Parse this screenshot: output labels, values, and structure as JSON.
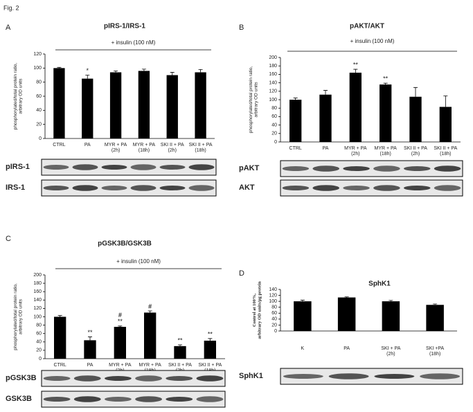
{
  "figure_label": "Fig. 2",
  "chart_data": [
    {
      "type": "bar",
      "panel": "A",
      "title": "pIRS-1/IRS-1",
      "annotation": "+ insulin (100 nM)",
      "y_label": "phosphorylated/total protein ratio, arbitrary OD units",
      "categories": [
        "CTRL",
        "PA",
        "MYR + PA (2h)",
        "MYR + PA (18h)",
        "SKI II + PA (2h)",
        "SKI II + PA (18h)"
      ],
      "values": [
        100,
        85,
        94,
        96,
        90,
        94
      ],
      "errors": [
        1,
        5,
        2,
        2.5,
        4,
        4
      ],
      "significance": [
        [],
        [
          "*"
        ],
        [],
        [],
        [],
        []
      ],
      "color": "#000000",
      "ylim": [
        0,
        120
      ],
      "yticks": [
        0,
        20,
        40,
        60,
        80,
        100,
        120
      ],
      "blots": [
        "pIRS-1",
        "IRS-1"
      ]
    },
    {
      "type": "bar",
      "panel": "B",
      "title": "pAKT/AKT",
      "annotation": "+ insulin (100 nM)",
      "y_label": "phosphorylated/total protein ratio, arbitrary OD units",
      "categories": [
        "CTRL",
        "PA",
        "MYR + PA (2h)",
        "MYR + PA (18h)",
        "SKI II + PA (2h)",
        "SKI II + PA (18h)"
      ],
      "values": [
        100,
        112,
        164,
        136,
        107,
        83
      ],
      "errors": [
        4,
        10,
        8,
        3,
        22,
        26
      ],
      "significance": [
        [],
        [],
        [
          "**"
        ],
        [
          "**"
        ],
        [],
        []
      ],
      "color": "#000000",
      "ylim": [
        0,
        200
      ],
      "yticks": [
        0,
        20,
        40,
        60,
        80,
        100,
        120,
        140,
        160,
        180,
        200
      ],
      "blots": [
        "pAKT",
        "AKT"
      ]
    },
    {
      "type": "bar",
      "panel": "C",
      "title": "pGSK3B/GSK3B",
      "annotation": "+ insulin (100 nM)",
      "y_label": "phosphorylated/total protein ratio, arbitrary OD units",
      "categories": [
        "CTRL",
        "PA",
        "MYR + PA (2h)",
        "MYR + PA (18h)",
        "SKI II + PA (2h)",
        "SKI II + PA (18h)"
      ],
      "values": [
        100,
        44,
        76,
        110,
        30,
        43
      ],
      "errors": [
        3,
        8,
        2,
        4,
        3,
        5
      ],
      "significance": [
        [],
        [
          "**"
        ],
        [
          "#",
          "**"
        ],
        [
          "#"
        ],
        [
          "**"
        ],
        [
          "**"
        ]
      ],
      "color": "#000000",
      "ylim": [
        0,
        200
      ],
      "yticks": [
        0,
        20,
        40,
        60,
        80,
        100,
        120,
        140,
        160,
        180,
        200
      ],
      "blots": [
        "pGSK3B",
        "GSK3B"
      ]
    },
    {
      "type": "bar",
      "panel": "D",
      "title": "SphK1",
      "y_label": "Control at 100%, arbitrary OD units/µg protein",
      "categories": [
        "K",
        "PA",
        "SKI + PA (2h)",
        "SKI +PA (18h)"
      ],
      "values": [
        100,
        113,
        100,
        88
      ],
      "errors": [
        4,
        2,
        3,
        3
      ],
      "significance": [
        [],
        [],
        [],
        []
      ],
      "color": "#000000",
      "ylim": [
        0,
        140
      ],
      "yticks": [
        0,
        20,
        40,
        60,
        80,
        100,
        120,
        140
      ],
      "blots": [
        "SphK1"
      ]
    }
  ]
}
